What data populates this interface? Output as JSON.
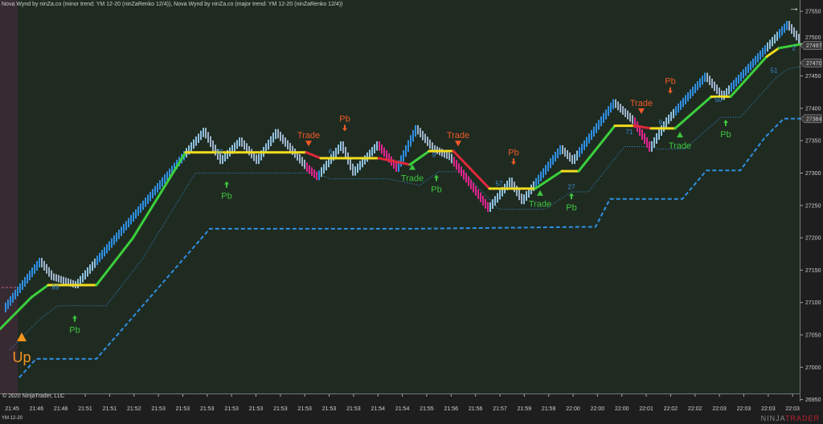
{
  "title": "Nova Wynd by ninZa.co (minor trend: YM 12-20 (ninZaRenko 12/4)), Nova Wynd by ninZa.co (major trend: YM 12-20 (ninZaRenko 12/4))",
  "copyright": "© 2020 NinjaTrader, LLC",
  "instrument": "YM 12-20",
  "logo": {
    "left": "NINJA",
    "right": "TRADER"
  },
  "nav_icon": "arrow-right-icon",
  "chart_data": {
    "type": "renko",
    "ylim": [
      26950,
      27575
    ],
    "y_ticks": [
      27550,
      27500,
      27450,
      27400,
      27350,
      27300,
      27250,
      27200,
      27150,
      27100,
      27050,
      27000,
      26950
    ],
    "x_ticks": [
      "21:45",
      "21:46",
      "21:48",
      "21:51",
      "21:51",
      "21:52",
      "21:53",
      "21:53",
      "21:53",
      "21:53",
      "21:53",
      "21:53",
      "21:53",
      "21:53",
      "21:53",
      "21:54",
      "21:54",
      "21:55",
      "21:56",
      "21:56",
      "21:57",
      "21:59",
      "21:59",
      "22:00",
      "22:00",
      "22:00",
      "22:01",
      "22:02",
      "22:02",
      "22:03",
      "22:03",
      "22:03",
      "22:03"
    ],
    "bar_count": 333,
    "price_path": [
      [
        2,
        27090
      ],
      [
        17,
        27164
      ],
      [
        22,
        27140
      ],
      [
        32,
        27127
      ],
      [
        55,
        27230
      ],
      [
        85,
        27365
      ],
      [
        92,
        27319
      ],
      [
        100,
        27350
      ],
      [
        107,
        27319
      ],
      [
        115,
        27363
      ],
      [
        128,
        27307
      ],
      [
        132,
        27294
      ],
      [
        142,
        27344
      ],
      [
        147,
        27301
      ],
      [
        157,
        27344
      ],
      [
        165,
        27307
      ],
      [
        173,
        27369
      ],
      [
        180,
        27338
      ],
      [
        187,
        27325
      ],
      [
        203,
        27245
      ],
      [
        212,
        27288
      ],
      [
        217,
        27257
      ],
      [
        233,
        27338
      ],
      [
        238,
        27319
      ],
      [
        255,
        27409
      ],
      [
        263,
        27381
      ],
      [
        270,
        27338
      ],
      [
        277,
        27381
      ],
      [
        293,
        27450
      ],
      [
        300,
        27418
      ],
      [
        327,
        27530
      ],
      [
        332,
        27505
      ]
    ],
    "minor_trend": [
      [
        0,
        27059,
        "up"
      ],
      [
        13,
        27108,
        "up"
      ],
      [
        20,
        27127,
        "flat"
      ],
      [
        40,
        27127,
        "up"
      ],
      [
        55,
        27199,
        "up"
      ],
      [
        77,
        27332,
        "flat"
      ],
      [
        89,
        27332,
        "flat"
      ],
      [
        127,
        27332,
        "down"
      ],
      [
        133,
        27323,
        "flat"
      ],
      [
        157,
        27323,
        "down"
      ],
      [
        170,
        27313,
        "up"
      ],
      [
        178,
        27334,
        "flat"
      ],
      [
        188,
        27334,
        "down"
      ],
      [
        203,
        27276,
        "flat"
      ],
      [
        222,
        27276,
        "up"
      ],
      [
        233,
        27303,
        "flat"
      ],
      [
        240,
        27303,
        "up"
      ],
      [
        255,
        27373,
        "flat"
      ],
      [
        263,
        27373,
        "down"
      ],
      [
        270,
        27369,
        "flat"
      ],
      [
        280,
        27369,
        "up"
      ],
      [
        295,
        27418,
        "flat"
      ],
      [
        303,
        27418,
        "up"
      ],
      [
        318,
        27480,
        "flat"
      ],
      [
        323,
        27493,
        "up"
      ],
      [
        332,
        27499,
        "up"
      ]
    ],
    "major_trend": [
      [
        8,
        26984
      ],
      [
        15,
        27013
      ],
      [
        40,
        27013
      ],
      [
        87,
        27214
      ],
      [
        173,
        27214
      ],
      [
        247,
        27217
      ],
      [
        253,
        27260
      ],
      [
        283,
        27260
      ],
      [
        293,
        27304
      ],
      [
        307,
        27304
      ],
      [
        317,
        27354
      ],
      [
        325,
        27384
      ],
      [
        332,
        27384
      ]
    ],
    "price_tags": [
      {
        "value": "27497",
        "price": 27497,
        "color": "#cfcfcf"
      },
      {
        "value": "27470",
        "price": 27470,
        "color": "#cfcfcf"
      },
      {
        "value": "27384",
        "price": 27384,
        "color": "#cfcfcf"
      }
    ],
    "signals": [
      {
        "text": "Up",
        "type": "trend-up",
        "bar": 9,
        "price": 27040,
        "color": "#f5941e"
      },
      {
        "text": "89",
        "type": "count",
        "bar": 23,
        "price": 27120,
        "color": "#3a8fd8"
      },
      {
        "text": "Pb",
        "type": "pullback-long",
        "bar": 31,
        "price": 27073,
        "color": "#3ec43e"
      },
      {
        "text": "20",
        "type": "count",
        "bar": 91,
        "price": 27330,
        "color": "#3a8fd8"
      },
      {
        "text": "Pb",
        "type": "pullback-long",
        "bar": 94,
        "price": 27280,
        "color": "#3ec43e"
      },
      {
        "text": "Trade",
        "type": "trade-short",
        "bar": 128,
        "price": 27350,
        "color": "#f05a28"
      },
      {
        "text": "6",
        "type": "count",
        "bar": 137,
        "price": 27330,
        "color": "#3a8fd8"
      },
      {
        "text": "Pb",
        "type": "pullback-short",
        "bar": 143,
        "price": 27372,
        "color": "#f05a28"
      },
      {
        "text": "9",
        "type": "count",
        "bar": 180,
        "price": 27325,
        "color": "#3a8fd8"
      },
      {
        "text": "Trade",
        "type": "trade-long",
        "bar": 171,
        "price": 27305,
        "color": "#3ec43e"
      },
      {
        "text": "Pb",
        "type": "pullback-long",
        "bar": 181,
        "price": 27290,
        "color": "#3ec43e"
      },
      {
        "text": "Trade",
        "type": "trade-short",
        "bar": 190,
        "price": 27350,
        "color": "#f05a28"
      },
      {
        "text": "57",
        "type": "count",
        "bar": 207,
        "price": 27280,
        "color": "#3a8fd8"
      },
      {
        "text": "Pb",
        "type": "pullback-short",
        "bar": 213,
        "price": 27320,
        "color": "#f05a28"
      },
      {
        "text": "Trade",
        "type": "trade-long",
        "bar": 224,
        "price": 27265,
        "color": "#3ec43e"
      },
      {
        "text": "27",
        "type": "count",
        "bar": 237,
        "price": 27275,
        "color": "#3a8fd8"
      },
      {
        "text": "Pb",
        "type": "pullback-long",
        "bar": 237,
        "price": 27262,
        "color": "#3ec43e"
      },
      {
        "text": "71",
        "type": "count",
        "bar": 261,
        "price": 27360,
        "color": "#3a8fd8"
      },
      {
        "text": "Trade",
        "type": "trade-short",
        "bar": 266,
        "price": 27400,
        "color": "#f05a28"
      },
      {
        "text": "6",
        "type": "count",
        "bar": 274,
        "price": 27375,
        "color": "#3a8fd8"
      },
      {
        "text": "Pb",
        "type": "pullback-short",
        "bar": 278,
        "price": 27430,
        "color": "#f05a28"
      },
      {
        "text": "Trade",
        "type": "trade-long",
        "bar": 282,
        "price": 27355,
        "color": "#3ec43e"
      },
      {
        "text": "50",
        "type": "count",
        "bar": 298,
        "price": 27410,
        "color": "#3a8fd8"
      },
      {
        "text": "Pb",
        "type": "pullback-long",
        "bar": 301,
        "price": 27375,
        "color": "#3ec43e"
      },
      {
        "text": "51",
        "type": "count",
        "bar": 321,
        "price": 27455,
        "color": "#3a8fd8"
      },
      {
        "text": "2",
        "type": "count",
        "bar": 331,
        "price": 27490,
        "color": "#3a8fd8"
      }
    ],
    "colors": {
      "up_bar": "#2f8fe3",
      "range_bar": "#9fb4cc",
      "down_bar": "#e0258f",
      "trend_up": "#3ccf3c",
      "trend_flat": "#f2dc1e",
      "trend_down": "#e0283c",
      "major": "#2f8fe3",
      "stop": "#3a8fd8",
      "upper_stop": "#e0258f"
    }
  }
}
